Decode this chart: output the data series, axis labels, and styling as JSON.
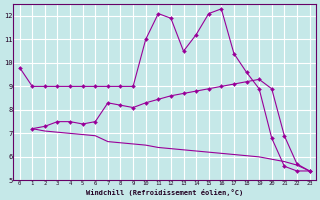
{
  "xlabel": "Windchill (Refroidissement éolien,°C)",
  "bg_color": "#c5e8e8",
  "grid_color": "#ffffff",
  "line_color": "#990099",
  "xlim": [
    -0.5,
    23.5
  ],
  "ylim": [
    5,
    12.5
  ],
  "yticks": [
    5,
    6,
    7,
    8,
    9,
    10,
    11,
    12
  ],
  "xticks": [
    0,
    1,
    2,
    3,
    4,
    5,
    6,
    7,
    8,
    9,
    10,
    11,
    12,
    13,
    14,
    15,
    16,
    17,
    18,
    19,
    20,
    21,
    22,
    23
  ],
  "series": [
    {
      "x": [
        0,
        1,
        2,
        3,
        4,
        5,
        6,
        7,
        8,
        9,
        10,
        11,
        12,
        13,
        14,
        15,
        16,
        17,
        18,
        19,
        20,
        21,
        22,
        23
      ],
      "y": [
        9.8,
        9.0,
        9.0,
        9.0,
        9.0,
        9.0,
        9.0,
        9.0,
        9.0,
        9.0,
        11.0,
        12.1,
        11.9,
        10.5,
        11.2,
        12.1,
        12.3,
        10.4,
        9.6,
        8.9,
        6.8,
        5.6,
        5.4,
        5.4
      ],
      "has_markers": true
    },
    {
      "x": [
        1,
        2,
        3,
        4,
        5,
        6,
        7,
        8,
        9,
        10,
        11,
        12,
        13,
        14,
        15,
        16,
        17,
        18,
        19,
        20,
        21,
        22,
        23
      ],
      "y": [
        7.2,
        7.3,
        7.5,
        7.5,
        7.4,
        7.5,
        8.3,
        8.2,
        8.1,
        8.3,
        8.45,
        8.6,
        8.7,
        8.8,
        8.9,
        9.0,
        9.1,
        9.2,
        9.3,
        8.9,
        6.9,
        5.7,
        5.4
      ],
      "has_markers": true
    },
    {
      "x": [
        1,
        2,
        3,
        4,
        5,
        6,
        7,
        8,
        9,
        10,
        11,
        12,
        13,
        14,
        15,
        16,
        17,
        18,
        19,
        20,
        21,
        22,
        23
      ],
      "y": [
        7.2,
        7.1,
        7.05,
        7.0,
        6.95,
        6.9,
        6.65,
        6.6,
        6.55,
        6.5,
        6.4,
        6.35,
        6.3,
        6.25,
        6.2,
        6.15,
        6.1,
        6.05,
        6.0,
        5.9,
        5.8,
        5.65,
        5.4
      ],
      "has_markers": false
    }
  ]
}
